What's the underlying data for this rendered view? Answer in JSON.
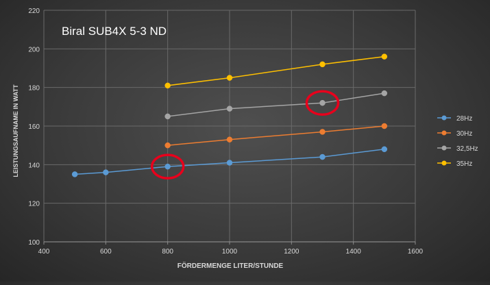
{
  "chart_data": {
    "type": "line",
    "title": "Biral SUB4X 5-3 ND",
    "xlabel": "FÖRDERMENGE LITER/STUNDE",
    "ylabel": "LEISTUNGSAUFNAME IN WATT",
    "xlim": [
      400,
      1600
    ],
    "ylim": [
      100,
      220
    ],
    "xticks": [
      400,
      600,
      800,
      1000,
      1200,
      1400,
      1600
    ],
    "yticks": [
      100,
      120,
      140,
      160,
      180,
      200,
      220
    ],
    "grid": true,
    "legend_position": "right",
    "series": [
      {
        "name": "28Hz",
        "color": "#5b9bd5",
        "x": [
          500,
          600,
          800,
          1000,
          1300,
          1500
        ],
        "y": [
          135,
          136,
          139,
          141,
          144,
          148
        ]
      },
      {
        "name": "30Hz",
        "color": "#ed7d31",
        "x": [
          800,
          1000,
          1300,
          1500
        ],
        "y": [
          150,
          153,
          157,
          160
        ]
      },
      {
        "name": "32,5Hz",
        "color": "#a5a5a5",
        "x": [
          800,
          1000,
          1300,
          1500
        ],
        "y": [
          165,
          169,
          172,
          177
        ]
      },
      {
        "name": "35Hz",
        "color": "#ffc000",
        "x": [
          800,
          1000,
          1300,
          1500
        ],
        "y": [
          181,
          185,
          192,
          196
        ]
      }
    ],
    "annotations": [
      {
        "shape": "ellipse",
        "color": "#e8001c",
        "series": "28Hz",
        "x": 800,
        "y": 139
      },
      {
        "shape": "ellipse",
        "color": "#e8001c",
        "series": "32,5Hz",
        "x": 1300,
        "y": 172
      }
    ]
  }
}
